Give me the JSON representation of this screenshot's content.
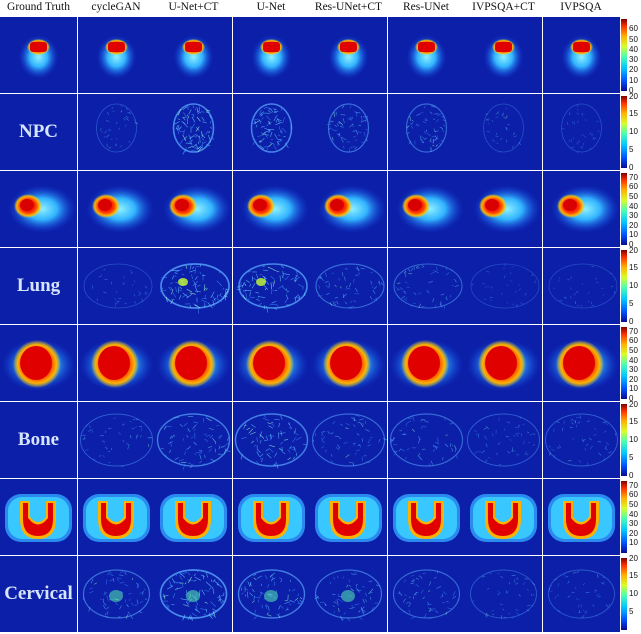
{
  "columns": [
    "Ground Truth",
    "cycleGAN",
    "U-Net+CT",
    "U-Net",
    "Res-UNet+CT",
    "Res-UNet",
    "IVPSQA+CT",
    "IVPSQA"
  ],
  "rows": [
    {
      "type": "dose",
      "site": "npc",
      "label": ""
    },
    {
      "type": "error",
      "site": "npc",
      "label": "NPC"
    },
    {
      "type": "dose",
      "site": "lung",
      "label": ""
    },
    {
      "type": "error",
      "site": "lung",
      "label": "Lung"
    },
    {
      "type": "dose",
      "site": "bone",
      "label": ""
    },
    {
      "type": "error",
      "site": "bone",
      "label": "Bone"
    },
    {
      "type": "dose",
      "site": "cervical",
      "label": ""
    },
    {
      "type": "error",
      "site": "cervical",
      "label": "Cervical"
    }
  ],
  "colorbars": [
    {
      "ticks": [
        "60",
        "50",
        "40",
        "30",
        "20",
        "10",
        "0"
      ],
      "max": 70
    },
    {
      "ticks": [
        "20",
        "15",
        "10",
        "5",
        "0"
      ],
      "max": 20
    },
    {
      "ticks": [
        "70",
        "60",
        "50",
        "40",
        "30",
        "20",
        "10",
        "0"
      ],
      "max": 75
    },
    {
      "ticks": [
        "20",
        "15",
        "10",
        "5",
        "0"
      ],
      "max": 20
    },
    {
      "ticks": [
        "70",
        "60",
        "50",
        "40",
        "30",
        "20",
        "10",
        "0"
      ],
      "max": 75
    },
    {
      "ticks": [
        "20",
        "15",
        "10",
        "5",
        "0"
      ],
      "max": 20
    },
    {
      "ticks": [
        "70",
        "60",
        "50",
        "40",
        "30",
        "20",
        "10"
      ],
      "max": 75
    },
    {
      "ticks": [
        "20",
        "15",
        "10",
        "5"
      ],
      "max": 20
    }
  ],
  "error_intensity": [
    [
      0,
      0.25,
      0.85,
      0.8,
      0.55,
      0.5,
      0.2,
      0.2
    ],
    [
      0,
      0.2,
      0.9,
      0.85,
      0.5,
      0.45,
      0.15,
      0.15
    ],
    [
      0,
      0.35,
      0.7,
      0.75,
      0.5,
      0.5,
      0.35,
      0.35
    ],
    [
      0,
      0.55,
      0.9,
      0.7,
      0.55,
      0.5,
      0.3,
      0.3
    ]
  ]
}
